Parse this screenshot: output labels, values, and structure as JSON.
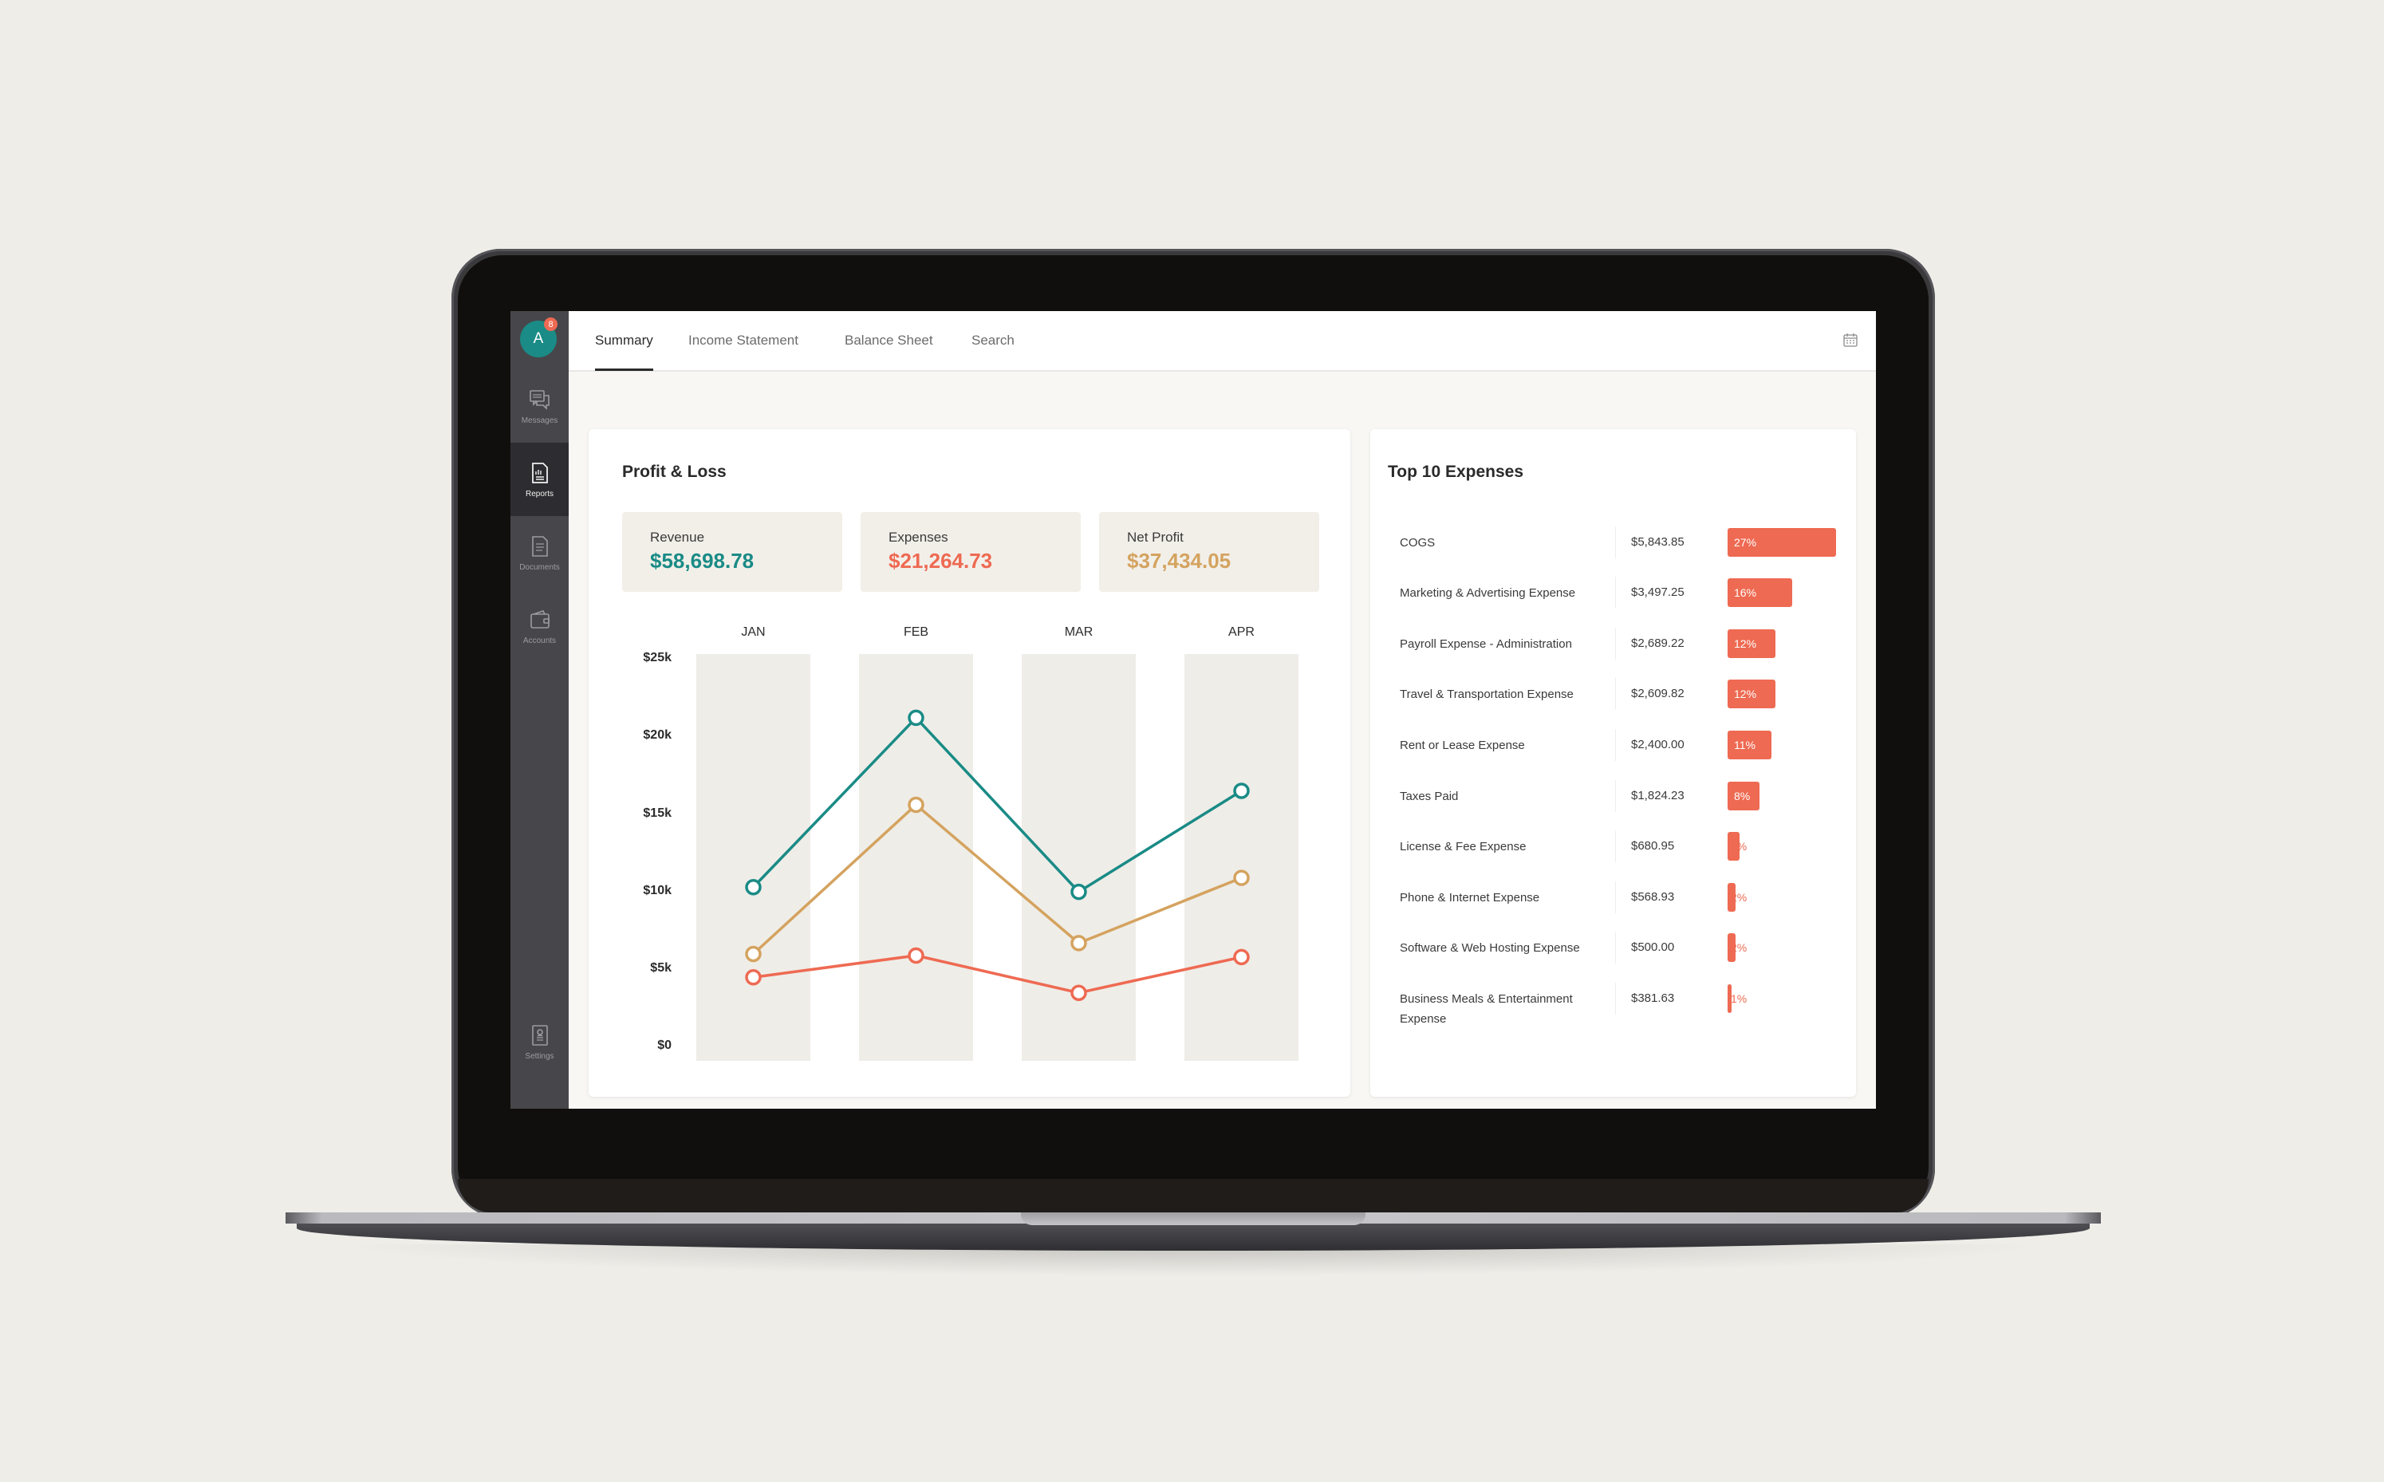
{
  "app": {
    "avatar_initial": "A",
    "notification_count": "8"
  },
  "sidebar": {
    "items": [
      {
        "label": "Messages",
        "icon": "messages-icon",
        "active": false
      },
      {
        "label": "Reports",
        "icon": "reports-icon",
        "active": true
      },
      {
        "label": "Documents",
        "icon": "documents-icon",
        "active": false
      },
      {
        "label": "Accounts",
        "icon": "wallet-icon",
        "active": false
      },
      {
        "label": "Settings",
        "icon": "settings-icon",
        "active": false
      }
    ]
  },
  "tabs": [
    {
      "label": "Summary",
      "active": true
    },
    {
      "label": "Income Statement",
      "active": false
    },
    {
      "label": "Balance Sheet",
      "active": false
    },
    {
      "label": "Search",
      "active": false
    }
  ],
  "header": {
    "calendar_icon": "calendar-icon"
  },
  "profit_loss": {
    "title": "Profit & Loss",
    "kpis": [
      {
        "label": "Revenue",
        "value": "$58,698.78",
        "color": "#1a8b86"
      },
      {
        "label": "Expenses",
        "value": "$21,264.73",
        "color": "#ee6a52"
      },
      {
        "label": "Net Profit",
        "value": "$37,434.05",
        "color": "#d4a35f"
      }
    ]
  },
  "chart_data": {
    "type": "line",
    "title": "Profit & Loss",
    "categories": [
      "JAN",
      "FEB",
      "MAR",
      "APR"
    ],
    "series": [
      {
        "name": "Revenue",
        "color": "#1a8b86",
        "values": [
          10100,
          21000,
          9800,
          16300
        ]
      },
      {
        "name": "Net Profit",
        "color": "#d4a35f",
        "values": [
          5800,
          15400,
          6500,
          10700
        ]
      },
      {
        "name": "Expenses",
        "color": "#ee6a52",
        "values": [
          4300,
          5700,
          3300,
          5600
        ]
      }
    ],
    "y_ticks": [
      "$25k",
      "$20k",
      "$15k",
      "$10k",
      "$5k",
      "$0"
    ],
    "ylim": [
      0,
      25000
    ],
    "xlabel": "",
    "ylabel": "",
    "grid": false,
    "legend": "none",
    "column_bands": true
  },
  "top_expenses": {
    "title": "Top 10 Expenses",
    "items": [
      {
        "name": "COGS",
        "amount": "$5,843.85",
        "pct": "27%",
        "pct_value": 27
      },
      {
        "name": "Marketing & Advertising Expense",
        "amount": "$3,497.25",
        "pct": "16%",
        "pct_value": 16
      },
      {
        "name": "Payroll Expense - Administration",
        "amount": "$2,689.22",
        "pct": "12%",
        "pct_value": 12
      },
      {
        "name": "Travel & Transportation Expense",
        "amount": "$2,609.82",
        "pct": "12%",
        "pct_value": 12
      },
      {
        "name": "Rent or Lease Expense",
        "amount": "$2,400.00",
        "pct": "11%",
        "pct_value": 11
      },
      {
        "name": "Taxes Paid",
        "amount": "$1,824.23",
        "pct": "8%",
        "pct_value": 8
      },
      {
        "name": "License & Fee Expense",
        "amount": "$680.95",
        "pct": "3%",
        "pct_value": 3
      },
      {
        "name": "Phone & Internet Expense",
        "amount": "$568.93",
        "pct": "2%",
        "pct_value": 2
      },
      {
        "name": "Software & Web Hosting Expense",
        "amount": "$500.00",
        "pct": "2%",
        "pct_value": 2
      },
      {
        "name": "Business Meals & Entertainment Expense",
        "amount": "$381.63",
        "pct": "1%",
        "pct_value": 1
      }
    ]
  }
}
